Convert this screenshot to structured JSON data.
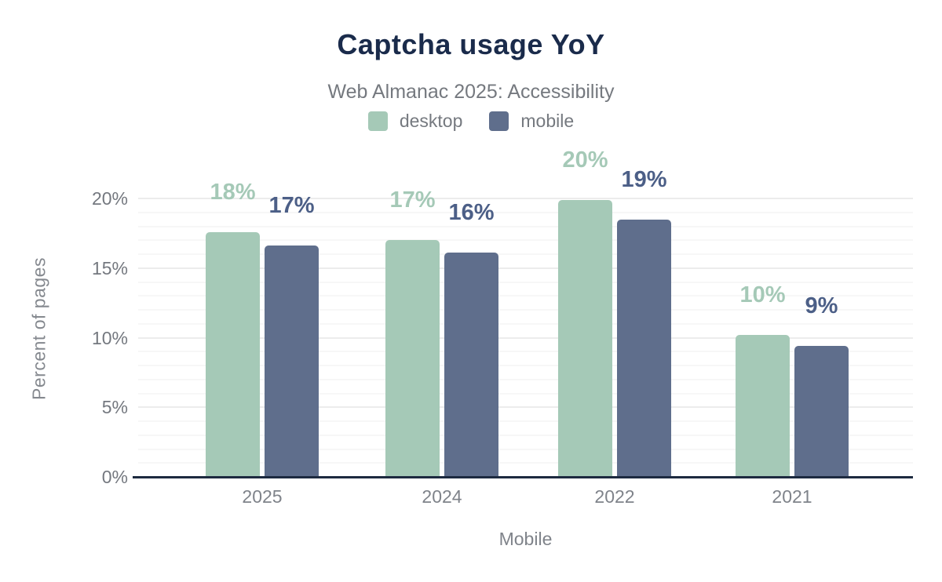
{
  "title": "Captcha usage YoY",
  "subtitle": "Web Almanac 2025: Accessibility",
  "legend": [
    {
      "label": "desktop",
      "color": "#a5c9b7"
    },
    {
      "label": "mobile",
      "color": "#5f6e8c"
    }
  ],
  "colors": {
    "title": "#1a2b4b",
    "muted_text": "#75797f",
    "axis_line": "#1d2a40",
    "major_gridline": "#ececec",
    "minor_gridline": "#f7f7f7",
    "desktop_bar": "#a5c9b7",
    "desktop_label": "#a5c9b7",
    "mobile_bar": "#5f6e8c",
    "mobile_label": "#4c5f87"
  },
  "chart_data": {
    "type": "bar",
    "title": "Captcha usage YoY",
    "subtitle": "Web Almanac 2025: Accessibility",
    "categories": [
      "2025",
      "2024",
      "2022",
      "2021"
    ],
    "series": [
      {
        "name": "desktop",
        "values": [
          17.6,
          17.0,
          19.9,
          10.2
        ],
        "labels": [
          "18%",
          "17%",
          "20%",
          "10%"
        ],
        "color": "#a5c9b7",
        "label_color": "#a5c9b7"
      },
      {
        "name": "mobile",
        "values": [
          16.6,
          16.1,
          18.5,
          9.4
        ],
        "labels": [
          "17%",
          "16%",
          "19%",
          "9%"
        ],
        "color": "#5f6e8c",
        "label_color": "#4c5f87"
      }
    ],
    "xlabel": "Mobile",
    "ylabel": "Percent of pages",
    "ylim": [
      0,
      20
    ],
    "yticks": [
      "0%",
      "5%",
      "10%",
      "15%",
      "20%"
    ],
    "ytick_values": [
      0,
      5,
      10,
      15,
      20
    ],
    "grid": "horizontal: minor lines every 1%, major lines every 5%",
    "legend_position": "top center"
  }
}
